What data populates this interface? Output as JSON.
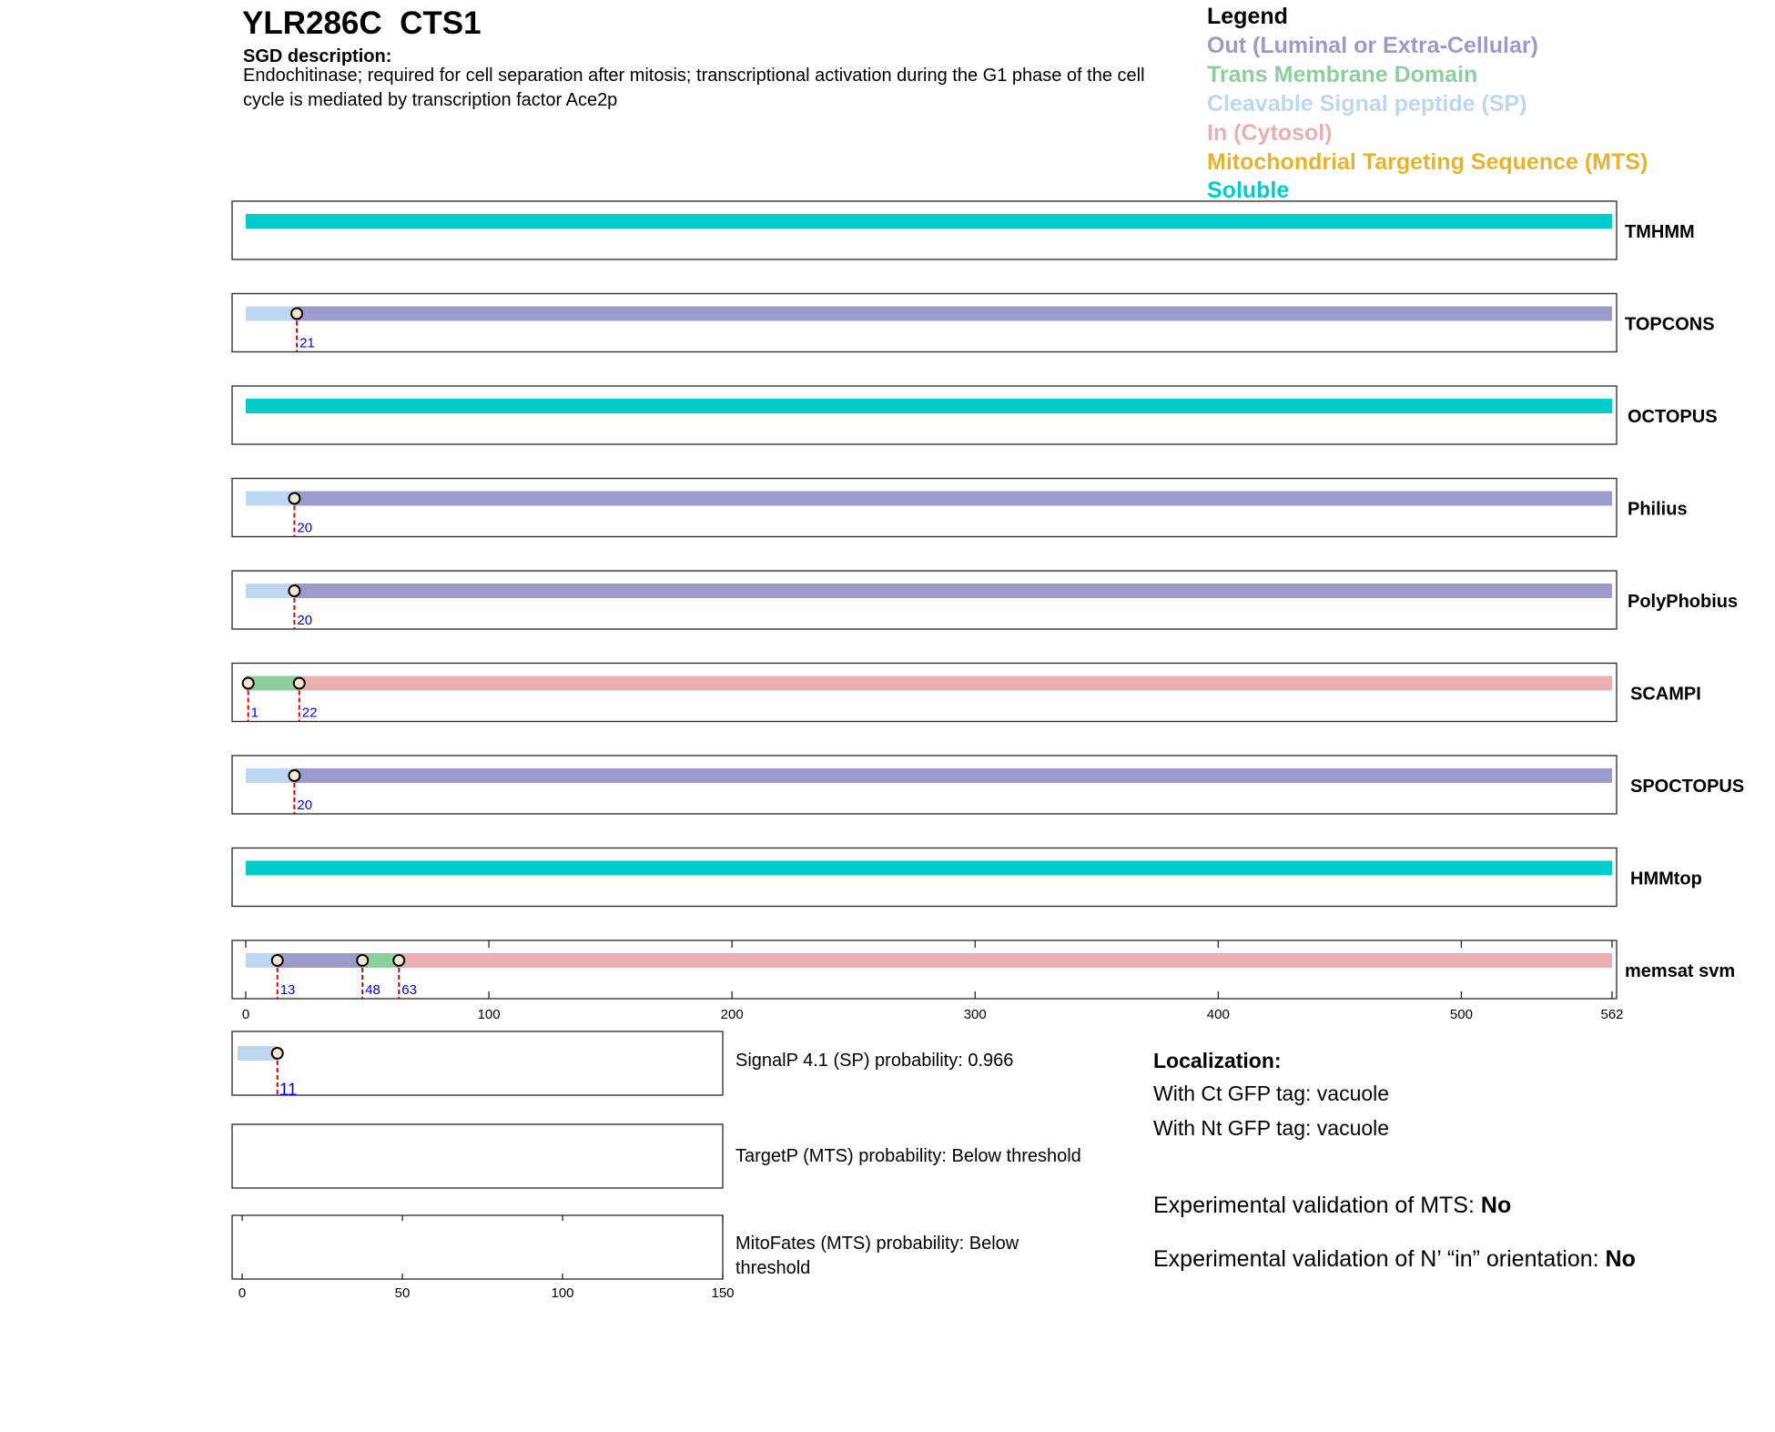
{
  "header": {
    "title": "YLR286C  CTS1",
    "sgd_label": "SGD description:",
    "sgd_text": "Endochitinase; required for cell separation after mitosis; transcriptional activation during the G1 phase of the cell cycle is mediated by transcription factor Ace2p"
  },
  "legend": {
    "title": "Legend",
    "items": [
      {
        "label": "Out (Luminal or Extra-Cellular)",
        "color": "#9b9bcb"
      },
      {
        "label": "Trans Membrane Domain",
        "color": "#8dce9d"
      },
      {
        "label": "Cleavable Signal peptide (SP)",
        "color": "#bdd7f2"
      },
      {
        "label": "In (Cytosol)",
        "color": "#eab0b1"
      },
      {
        "label": "Mitochondrial Targeting Sequence (MTS)",
        "color": "#e6b32e"
      },
      {
        "label": "Soluble",
        "color": "#00cccc"
      }
    ]
  },
  "colors": {
    "out": "#9b9bcb",
    "tm": "#8dce9d",
    "sp": "#bdd7f2",
    "in": "#eab0b1",
    "mts": "#e6b32e",
    "soluble": "#00cccc",
    "marker_line": "#e00000",
    "marker_label": "#0000ee"
  },
  "chart_data": [
    {
      "type": "bar",
      "title": "",
      "protein_length": 562,
      "xlim": [
        0,
        562
      ],
      "xticks": [
        0,
        100,
        200,
        300,
        400,
        500,
        562
      ],
      "tracks": [
        {
          "name": "TMHMM",
          "segments": [
            {
              "start": 0,
              "end": 562,
              "type": "soluble"
            }
          ],
          "markers": []
        },
        {
          "name": "TOPCONS",
          "segments": [
            {
              "start": 0,
              "end": 21,
              "type": "sp"
            },
            {
              "start": 21,
              "end": 562,
              "type": "out"
            }
          ],
          "markers": [
            21
          ]
        },
        {
          "name": "OCTOPUS",
          "segments": [
            {
              "start": 0,
              "end": 562,
              "type": "soluble"
            }
          ],
          "markers": []
        },
        {
          "name": "Philius",
          "segments": [
            {
              "start": 0,
              "end": 20,
              "type": "sp"
            },
            {
              "start": 20,
              "end": 562,
              "type": "out"
            }
          ],
          "markers": [
            20
          ]
        },
        {
          "name": "PolyPhobius",
          "segments": [
            {
              "start": 0,
              "end": 20,
              "type": "sp"
            },
            {
              "start": 20,
              "end": 562,
              "type": "out"
            }
          ],
          "markers": [
            20
          ]
        },
        {
          "name": "SCAMPI",
          "segments": [
            {
              "start": 0,
              "end": 1,
              "type": "out"
            },
            {
              "start": 1,
              "end": 22,
              "type": "tm"
            },
            {
              "start": 22,
              "end": 562,
              "type": "in"
            }
          ],
          "markers": [
            1,
            22
          ]
        },
        {
          "name": "SPOCTOPUS",
          "segments": [
            {
              "start": 0,
              "end": 20,
              "type": "sp"
            },
            {
              "start": 20,
              "end": 562,
              "type": "out"
            }
          ],
          "markers": [
            20
          ]
        },
        {
          "name": "HMMtop",
          "segments": [
            {
              "start": 0,
              "end": 562,
              "type": "soluble"
            }
          ],
          "markers": []
        },
        {
          "name": "memsat svm",
          "segments": [
            {
              "start": 0,
              "end": 13,
              "type": "sp"
            },
            {
              "start": 13,
              "end": 48,
              "type": "out"
            },
            {
              "start": 48,
              "end": 63,
              "type": "tm"
            },
            {
              "start": 63,
              "end": 562,
              "type": "in"
            }
          ],
          "markers": [
            13,
            48,
            63
          ]
        }
      ]
    },
    {
      "type": "bar",
      "title": "",
      "xlim": [
        0,
        150
      ],
      "xticks": [
        0,
        50,
        100,
        150
      ],
      "tracks": [
        {
          "name": "SignalP",
          "segments": [
            {
              "start": 0,
              "end": 11,
              "type": "sp"
            }
          ],
          "markers": [
            11
          ]
        },
        {
          "name": "TargetP",
          "segments": [],
          "markers": []
        },
        {
          "name": "MitoFates",
          "segments": [],
          "markers": []
        }
      ]
    }
  ],
  "predictions": {
    "signalp": "SignalP 4.1 (SP) probability: 0.966",
    "targetp": "TargetP (MTS) probability: Below threshold",
    "mitofates": "MitoFates (MTS) probability: Below threshold"
  },
  "localization": {
    "title": "Localization:",
    "ct": "With Ct GFP tag: vacuole",
    "nt": "With Nt GFP tag: vacuole",
    "mts_label": "Experimental validation of MTS: ",
    "mts_value": "No",
    "nin_label": "Experimental validation of N’ “in” orientation: ",
    "nin_value": "No"
  }
}
